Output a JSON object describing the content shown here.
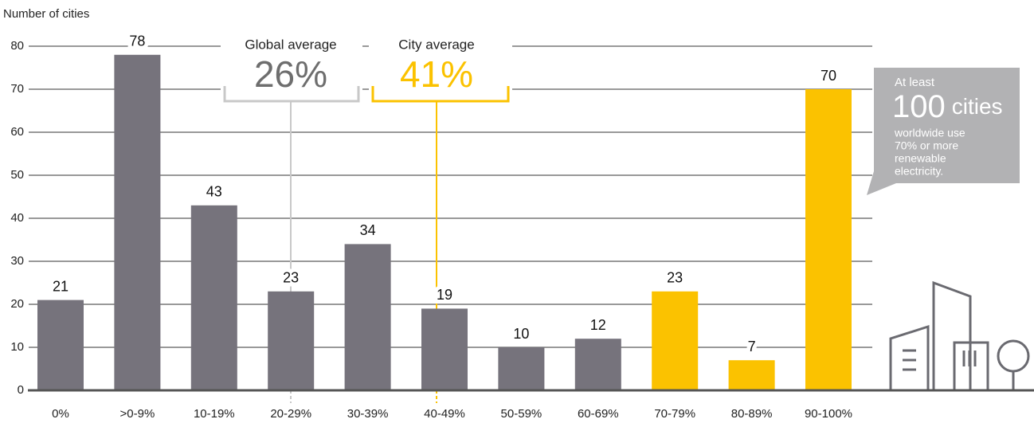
{
  "chart_data": {
    "type": "bar",
    "y_label": "Number of cities",
    "categories": [
      "0%",
      ">0-9%",
      "10-19%",
      "20-29%",
      "30-39%",
      "40-49%",
      "50-59%",
      "60-69%",
      "70-79%",
      "80-89%",
      "90-100%"
    ],
    "values": [
      21,
      78,
      43,
      23,
      34,
      19,
      10,
      12,
      23,
      7,
      70
    ],
    "colors": [
      "#76737c",
      "#76737c",
      "#76737c",
      "#76737c",
      "#76737c",
      "#76737c",
      "#76737c",
      "#76737c",
      "#fbc200",
      "#fbc200",
      "#fbc200"
    ],
    "ylim": [
      0,
      80
    ],
    "yticks": [
      0,
      10,
      20,
      30,
      40,
      50,
      60,
      70,
      80
    ],
    "grid": true,
    "annotations": [
      {
        "label": "Global average",
        "value": "26%",
        "color": "#6e6e6e",
        "line_color": "#c8c8c8"
      },
      {
        "label": "City average",
        "value": "41%",
        "color": "#fbc200",
        "line_color": "#fbc200"
      }
    ],
    "callout": {
      "lead": "At least",
      "number": 100,
      "unit": "cities",
      "lines": [
        "worldwide use",
        "70% or more",
        "renewable",
        "electricity."
      ]
    }
  }
}
